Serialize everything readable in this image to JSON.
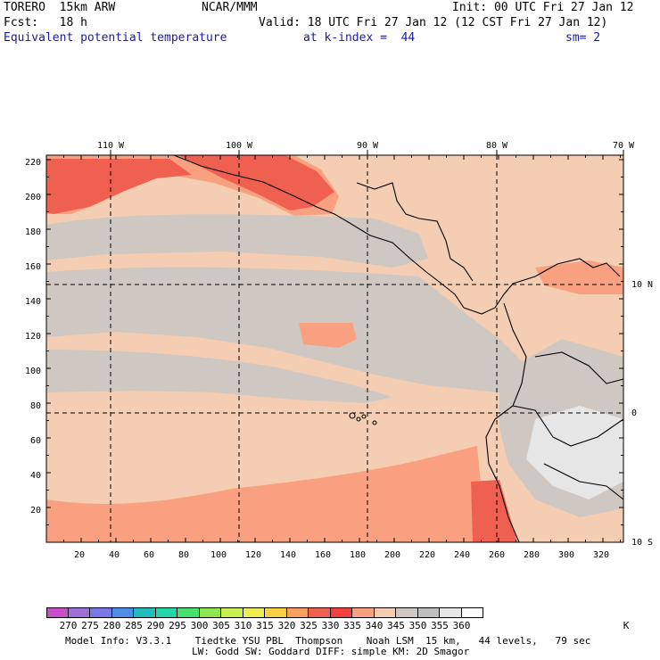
{
  "header": {
    "model": "TORERO  15km ARW",
    "center": "NCAR/MMM",
    "init": "Init: 00 UTC Fri 27 Jan 12",
    "fcst": "Fcst:   18 h",
    "valid": "Valid: 18 UTC Fri 27 Jan 12 (12 CST Fri 27 Jan 12)",
    "field": "Equivalent potential temperature",
    "level": "at k-index =  44",
    "smooth": "sm= 2"
  },
  "top_lon_labels": [
    "110 W",
    "100 W",
    "90 W",
    "80 W",
    "70 W"
  ],
  "right_lat_labels": [
    "10 N",
    "0",
    "10 S"
  ],
  "y_ticks": [
    "220",
    "200",
    "180",
    "160",
    "140",
    "120",
    "100",
    "80",
    "60",
    "40",
    "20"
  ],
  "x_ticks": [
    "20",
    "40",
    "60",
    "80",
    "100",
    "120",
    "140",
    "160",
    "180",
    "200",
    "220",
    "240",
    "260",
    "280",
    "300",
    "320"
  ],
  "colorbar": {
    "unit": "K",
    "labels": [
      "270",
      "275",
      "280",
      "285",
      "290",
      "295",
      "300",
      "305",
      "310",
      "315",
      "320",
      "325",
      "330",
      "335",
      "340",
      "345",
      "350",
      "355",
      "360"
    ],
    "colors": [
      "#c84fc8",
      "#a06ed8",
      "#7878e6",
      "#4f8ee6",
      "#22bcbc",
      "#22d6a8",
      "#4ae070",
      "#8ee650",
      "#c8ee50",
      "#eeee50",
      "#f8d048",
      "#f8a060",
      "#f06050",
      "#f04040",
      "#f8a080",
      "#f4cdb2",
      "#cfc7c1",
      "#bfbfbf",
      "#e6e6e6",
      "#ffffff"
    ]
  },
  "footer": {
    "line1": "Model Info: V3.3.1    Tiedtke YSU PBL  Thompson    Noah LSM  15 km,   44 levels,   79 sec",
    "line2": "LW: Godd SW: Goddard DIFF: simple KM: 2D Smagor"
  }
}
